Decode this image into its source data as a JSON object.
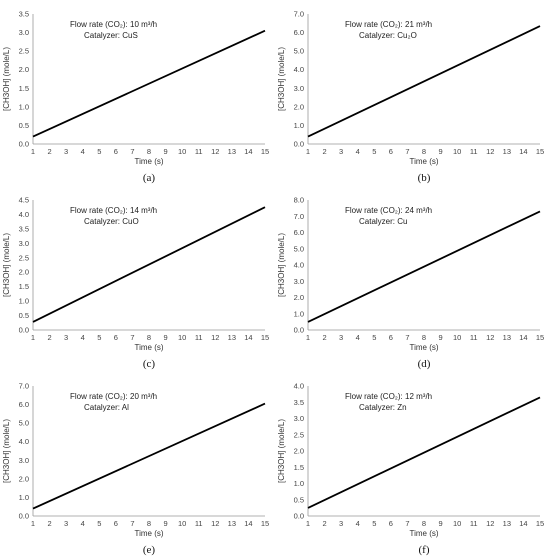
{
  "charts": [
    {
      "caption": "(a)",
      "xlabel": "Time (s)",
      "ylabel": "[CH3OH] (mole/L)",
      "annotation": [
        "Flow rate  (CO₂): 10 m³/h",
        "Catalyzer: CuS"
      ],
      "y_ticks": [
        "0.0",
        "0.5",
        "1.0",
        "1.5",
        "2.0",
        "2.5",
        "3.0",
        "3.5"
      ],
      "x_ticks": [
        "1",
        "2",
        "3",
        "4",
        "5",
        "6",
        "7",
        "8",
        "9",
        "10",
        "11",
        "12",
        "13",
        "14",
        "15"
      ],
      "chart_data": {
        "type": "line",
        "x": [
          1,
          15
        ],
        "y": [
          0.2,
          3.05
        ],
        "xlim": [
          1,
          15
        ],
        "ylim": [
          0,
          3.5
        ],
        "grid": false
      }
    },
    {
      "caption": "(b)",
      "xlabel": "Time (s)",
      "ylabel": "[CH3OH] (mole/L)",
      "annotation": [
        "Flow rate  (CO₂): 21 m³/h",
        "Catalyzer: Cu₂O"
      ],
      "y_ticks": [
        "0.0",
        "1.0",
        "2.0",
        "3.0",
        "4.0",
        "5.0",
        "6.0",
        "7.0"
      ],
      "x_ticks": [
        "1",
        "2",
        "3",
        "4",
        "5",
        "6",
        "7",
        "8",
        "9",
        "10",
        "11",
        "12",
        "13",
        "14",
        "15"
      ],
      "chart_data": {
        "type": "line",
        "x": [
          1,
          15
        ],
        "y": [
          0.4,
          6.35
        ],
        "xlim": [
          1,
          15
        ],
        "ylim": [
          0,
          7
        ],
        "grid": false
      }
    },
    {
      "caption": "(c)",
      "xlabel": "Time (s)",
      "ylabel": "[CH3OH] (mole/L)",
      "annotation": [
        "Flow rate  (CO₂): 14 m³/h",
        "Catalyzer: CuO"
      ],
      "y_ticks": [
        "0.0",
        "0.5",
        "1.0",
        "1.5",
        "2.0",
        "2.5",
        "3.0",
        "3.5",
        "4.0",
        "4.5"
      ],
      "x_ticks": [
        "1",
        "2",
        "3",
        "4",
        "5",
        "6",
        "7",
        "8",
        "9",
        "10",
        "11",
        "12",
        "13",
        "14",
        "15"
      ],
      "chart_data": {
        "type": "line",
        "x": [
          1,
          15
        ],
        "y": [
          0.28,
          4.25
        ],
        "xlim": [
          1,
          15
        ],
        "ylim": [
          0,
          4.5
        ],
        "grid": false
      }
    },
    {
      "caption": "(d)",
      "xlabel": "Time (s)",
      "ylabel": "[CH3OH] (mole/L)",
      "annotation": [
        "Flow rate  (CO₂): 24 m³/h",
        "Catalyzer: Cu"
      ],
      "y_ticks": [
        "0.0",
        "1.0",
        "2.0",
        "3.0",
        "4.0",
        "5.0",
        "6.0",
        "7.0",
        "8.0"
      ],
      "x_ticks": [
        "1",
        "2",
        "3",
        "4",
        "5",
        "6",
        "7",
        "8",
        "9",
        "10",
        "11",
        "12",
        "13",
        "14",
        "15"
      ],
      "chart_data": {
        "type": "line",
        "x": [
          1,
          15
        ],
        "y": [
          0.5,
          7.3
        ],
        "xlim": [
          1,
          15
        ],
        "ylim": [
          0,
          8
        ],
        "grid": false
      }
    },
    {
      "caption": "(e)",
      "xlabel": "Time (s)",
      "ylabel": "[CH3OH] (mole/L)",
      "annotation": [
        "Flow rate  (CO₂): 20 m³/h",
        "Catalyzer: Al"
      ],
      "y_ticks": [
        "0.0",
        "1.0",
        "2.0",
        "3.0",
        "4.0",
        "5.0",
        "6.0",
        "7.0"
      ],
      "x_ticks": [
        "1",
        "2",
        "3",
        "4",
        "5",
        "6",
        "7",
        "8",
        "9",
        "10",
        "11",
        "12",
        "13",
        "14",
        "15"
      ],
      "chart_data": {
        "type": "line",
        "x": [
          1,
          15
        ],
        "y": [
          0.4,
          6.05
        ],
        "xlim": [
          1,
          15
        ],
        "ylim": [
          0,
          7
        ],
        "grid": false
      }
    },
    {
      "caption": "(f)",
      "xlabel": "Time (s)",
      "ylabel": "[CH3OH] (mole/L)",
      "annotation": [
        "Flow rate  (CO₂): 12 m³/h",
        "Catalyzer: Zn"
      ],
      "y_ticks": [
        "0.0",
        "0.5",
        "1.0",
        "1.5",
        "2.0",
        "2.5",
        "3.0",
        "3.5",
        "4.0"
      ],
      "x_ticks": [
        "1",
        "2",
        "3",
        "4",
        "5",
        "6",
        "7",
        "8",
        "9",
        "10",
        "11",
        "12",
        "13",
        "14",
        "15"
      ],
      "chart_data": {
        "type": "line",
        "x": [
          1,
          15
        ],
        "y": [
          0.25,
          3.65
        ],
        "xlim": [
          1,
          15
        ],
        "ylim": [
          0,
          4
        ],
        "grid": false
      }
    }
  ]
}
